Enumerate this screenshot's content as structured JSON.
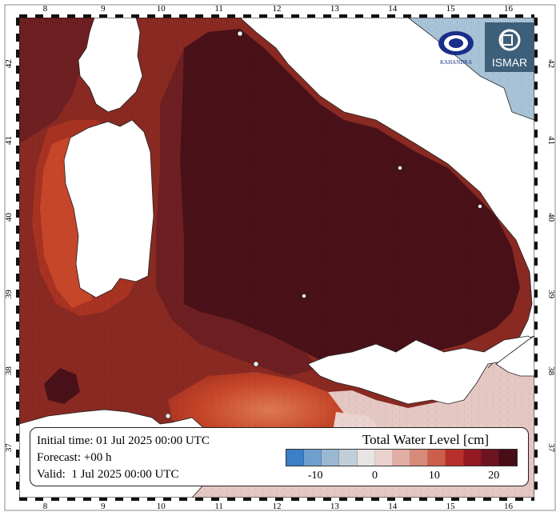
{
  "map": {
    "lon_ticks": [
      "8",
      "9",
      "10",
      "11",
      "12",
      "13",
      "14",
      "15",
      "16"
    ],
    "lat_ticks": [
      "37",
      "38",
      "39",
      "40",
      "41",
      "42"
    ],
    "colors": {
      "land": "#ffffff",
      "sea_deep_dark": "#4a1119",
      "sea_dark": "#6e1f22",
      "sea_mid": "#8a2a22",
      "sea_red": "#a93322",
      "sea_orange": "#c8472a",
      "sea_pink": "#e6c9c4",
      "sea_blue": "#a9c4d8",
      "coast": "#222222"
    }
  },
  "info": {
    "initial_time": "Initial time: 01 Jul 2025 00:00 UTC",
    "forecast": "Forecast: +00 h",
    "valid": "Valid:  1 Jul 2025 00:00 UTC"
  },
  "legend": {
    "title": "Total Water Level [cm]",
    "colors": [
      "#3a7fc8",
      "#6f9fcc",
      "#9bb8d3",
      "#c2cfda",
      "#e8e4e3",
      "#ecd2cc",
      "#e2ada2",
      "#d88a78",
      "#cc5f4c",
      "#b8302b",
      "#931a22",
      "#6d1421",
      "#480d17"
    ],
    "ticks": [
      {
        "label": "-10",
        "value": -10
      },
      {
        "label": "0",
        "value": 0
      },
      {
        "label": "10",
        "value": 10
      },
      {
        "label": "20",
        "value": 20
      }
    ],
    "range": [
      -15,
      24
    ]
  },
  "logos": {
    "left_text": "KAHANDRA",
    "right_text": "ISMAR"
  }
}
